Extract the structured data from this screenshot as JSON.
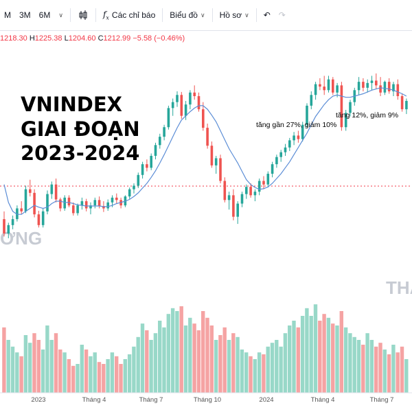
{
  "toolbar": {
    "items": [
      {
        "label": "M",
        "icon": ""
      },
      {
        "label": "3M",
        "icon": ""
      },
      {
        "label": "6M",
        "icon": ""
      }
    ],
    "candles_icon": "candlestick-icon",
    "indicators_label": "Các chỉ báo",
    "chart_label": "Biểu đồ",
    "profile_label": "Hồ sơ"
  },
  "ohlc": {
    "open": "1218.30",
    "high_label": "H",
    "high": "1225.38",
    "low_label": "L",
    "low": "1204.60",
    "close_label": "C",
    "close": "1212.99",
    "change": "−5.58 (−0.46%)"
  },
  "chart_data": {
    "type": "candlestick",
    "title_lines": [
      "VNINDEX",
      "GIAI ĐOẠN",
      "2023-2024"
    ],
    "annotations": [
      "tăng gần 27%, giảm 10%",
      "tăng 12%, giảm 9%"
    ],
    "watermarks": [
      "ƠNG",
      "THA"
    ],
    "x_ticks": [
      "2023",
      "Tháng 4",
      "Tháng 7",
      "Tháng 10",
      "2024",
      "Tháng 4",
      "Tháng 7"
    ],
    "colors": {
      "up": "#26a69a",
      "down": "#ef5350",
      "ma": "#5b8dd6",
      "vol_up": "#98d8c8",
      "vol_down": "#f5a3a3",
      "refline": "#f23645"
    },
    "ylim": [
      870,
      1330
    ],
    "candles": [
      [
        1032,
        1045,
        1003,
        1008
      ],
      [
        1008,
        1026,
        1000,
        1022
      ],
      [
        1022,
        1038,
        1015,
        1032
      ],
      [
        1032,
        1055,
        1028,
        1050
      ],
      [
        1050,
        1062,
        1040,
        1045
      ],
      [
        1045,
        1088,
        1042,
        1082
      ],
      [
        1082,
        1098,
        1070,
        1076
      ],
      [
        1076,
        1082,
        1035,
        1040
      ],
      [
        1040,
        1046,
        1018,
        1022
      ],
      [
        1022,
        1050,
        1018,
        1045
      ],
      [
        1045,
        1080,
        1040,
        1074
      ],
      [
        1074,
        1095,
        1066,
        1090
      ],
      [
        1090,
        1100,
        1060,
        1065
      ],
      [
        1065,
        1068,
        1045,
        1050
      ],
      [
        1050,
        1072,
        1046,
        1068
      ],
      [
        1068,
        1072,
        1052,
        1055
      ],
      [
        1055,
        1060,
        1038,
        1042
      ],
      [
        1042,
        1058,
        1038,
        1055
      ],
      [
        1055,
        1068,
        1048,
        1062
      ],
      [
        1062,
        1066,
        1045,
        1050
      ],
      [
        1050,
        1060,
        1040,
        1055
      ],
      [
        1055,
        1068,
        1050,
        1064
      ],
      [
        1064,
        1070,
        1050,
        1054
      ],
      [
        1054,
        1062,
        1044,
        1050
      ],
      [
        1050,
        1065,
        1046,
        1060
      ],
      [
        1060,
        1072,
        1052,
        1068
      ],
      [
        1068,
        1075,
        1058,
        1064
      ],
      [
        1064,
        1068,
        1050,
        1055
      ],
      [
        1055,
        1072,
        1052,
        1070
      ],
      [
        1070,
        1085,
        1066,
        1082
      ],
      [
        1082,
        1092,
        1075,
        1088
      ],
      [
        1088,
        1110,
        1084,
        1106
      ],
      [
        1106,
        1128,
        1100,
        1124
      ],
      [
        1124,
        1132,
        1112,
        1118
      ],
      [
        1118,
        1142,
        1114,
        1138
      ],
      [
        1138,
        1160,
        1132,
        1156
      ],
      [
        1156,
        1175,
        1150,
        1170
      ],
      [
        1170,
        1190,
        1164,
        1186
      ],
      [
        1186,
        1222,
        1182,
        1218
      ],
      [
        1218,
        1234,
        1205,
        1228
      ],
      [
        1228,
        1246,
        1220,
        1240
      ],
      [
        1240,
        1245,
        1200,
        1205
      ],
      [
        1205,
        1230,
        1198,
        1224
      ],
      [
        1224,
        1248,
        1216,
        1244
      ],
      [
        1244,
        1256,
        1232,
        1238
      ],
      [
        1238,
        1244,
        1212,
        1216
      ],
      [
        1216,
        1228,
        1180,
        1185
      ],
      [
        1185,
        1192,
        1150,
        1155
      ],
      [
        1155,
        1162,
        1118,
        1122
      ],
      [
        1122,
        1138,
        1108,
        1134
      ],
      [
        1134,
        1140,
        1092,
        1096
      ],
      [
        1096,
        1102,
        1060,
        1064
      ],
      [
        1064,
        1078,
        1048,
        1072
      ],
      [
        1072,
        1082,
        1030,
        1036
      ],
      [
        1036,
        1062,
        1024,
        1058
      ],
      [
        1058,
        1078,
        1052,
        1074
      ],
      [
        1074,
        1090,
        1066,
        1086
      ],
      [
        1086,
        1092,
        1068,
        1072
      ],
      [
        1072,
        1082,
        1062,
        1078
      ],
      [
        1078,
        1100,
        1072,
        1096
      ],
      [
        1096,
        1104,
        1082,
        1090
      ],
      [
        1090,
        1112,
        1085,
        1108
      ],
      [
        1108,
        1128,
        1102,
        1124
      ],
      [
        1124,
        1140,
        1118,
        1136
      ],
      [
        1136,
        1148,
        1128,
        1144
      ],
      [
        1144,
        1158,
        1138,
        1152
      ],
      [
        1152,
        1168,
        1146,
        1164
      ],
      [
        1164,
        1178,
        1156,
        1172
      ],
      [
        1172,
        1180,
        1160,
        1166
      ],
      [
        1166,
        1195,
        1162,
        1190
      ],
      [
        1190,
        1226,
        1186,
        1222
      ],
      [
        1222,
        1246,
        1216,
        1240
      ],
      [
        1240,
        1262,
        1232,
        1258
      ],
      [
        1258,
        1268,
        1248,
        1254
      ],
      [
        1254,
        1272,
        1240,
        1248
      ],
      [
        1248,
        1272,
        1244,
        1266
      ],
      [
        1266,
        1270,
        1240,
        1244
      ],
      [
        1244,
        1260,
        1236,
        1256
      ],
      [
        1256,
        1262,
        1180,
        1186
      ],
      [
        1186,
        1215,
        1180,
        1210
      ],
      [
        1210,
        1232,
        1204,
        1228
      ],
      [
        1228,
        1252,
        1222,
        1248
      ],
      [
        1248,
        1270,
        1240,
        1262
      ],
      [
        1262,
        1268,
        1246,
        1252
      ],
      [
        1252,
        1266,
        1244,
        1260
      ],
      [
        1260,
        1272,
        1248,
        1264
      ],
      [
        1264,
        1276,
        1250,
        1256
      ],
      [
        1256,
        1270,
        1238,
        1244
      ],
      [
        1244,
        1264,
        1240,
        1262
      ],
      [
        1262,
        1268,
        1242,
        1246
      ],
      [
        1246,
        1262,
        1238,
        1258
      ],
      [
        1258,
        1266,
        1232,
        1238
      ],
      [
        1238,
        1242,
        1212,
        1216
      ],
      [
        1216,
        1234,
        1208,
        1230
      ]
    ],
    "ma": [
      1090,
      1060,
      1045,
      1040,
      1040,
      1045,
      1050,
      1055,
      1052,
      1050,
      1052,
      1058,
      1062,
      1062,
      1060,
      1060,
      1058,
      1056,
      1055,
      1054,
      1054,
      1054,
      1054,
      1053,
      1053,
      1055,
      1058,
      1060,
      1062,
      1065,
      1070,
      1076,
      1084,
      1092,
      1102,
      1113,
      1126,
      1140,
      1155,
      1170,
      1185,
      1198,
      1205,
      1212,
      1218,
      1222,
      1222,
      1216,
      1206,
      1195,
      1180,
      1165,
      1150,
      1138,
      1126,
      1112,
      1098,
      1090,
      1085,
      1082,
      1083,
      1086,
      1092,
      1100,
      1108,
      1118,
      1128,
      1140,
      1152,
      1164,
      1176,
      1190,
      1204,
      1214,
      1224,
      1232,
      1238,
      1240,
      1238,
      1236,
      1236,
      1238,
      1240,
      1242,
      1245,
      1248,
      1250,
      1252,
      1251,
      1250,
      1248,
      1245,
      1242,
      1238
    ],
    "volume": [
      {
        "v": 0.68,
        "up": false
      },
      {
        "v": 0.55,
        "up": true
      },
      {
        "v": 0.48,
        "up": true
      },
      {
        "v": 0.42,
        "up": true
      },
      {
        "v": 0.38,
        "up": false
      },
      {
        "v": 0.6,
        "up": true
      },
      {
        "v": 0.52,
        "up": true
      },
      {
        "v": 0.62,
        "up": false
      },
      {
        "v": 0.55,
        "up": false
      },
      {
        "v": 0.45,
        "up": true
      },
      {
        "v": 0.7,
        "up": true
      },
      {
        "v": 0.55,
        "up": true
      },
      {
        "v": 0.62,
        "up": false
      },
      {
        "v": 0.45,
        "up": false
      },
      {
        "v": 0.42,
        "up": true
      },
      {
        "v": 0.35,
        "up": false
      },
      {
        "v": 0.28,
        "up": false
      },
      {
        "v": 0.3,
        "up": true
      },
      {
        "v": 0.5,
        "up": true
      },
      {
        "v": 0.45,
        "up": false
      },
      {
        "v": 0.38,
        "up": true
      },
      {
        "v": 0.42,
        "up": true
      },
      {
        "v": 0.32,
        "up": false
      },
      {
        "v": 0.3,
        "up": false
      },
      {
        "v": 0.35,
        "up": true
      },
      {
        "v": 0.42,
        "up": true
      },
      {
        "v": 0.38,
        "up": false
      },
      {
        "v": 0.3,
        "up": false
      },
      {
        "v": 0.35,
        "up": true
      },
      {
        "v": 0.4,
        "up": true
      },
      {
        "v": 0.48,
        "up": true
      },
      {
        "v": 0.58,
        "up": true
      },
      {
        "v": 0.72,
        "up": true
      },
      {
        "v": 0.65,
        "up": false
      },
      {
        "v": 0.55,
        "up": true
      },
      {
        "v": 0.62,
        "up": true
      },
      {
        "v": 0.75,
        "up": true
      },
      {
        "v": 0.68,
        "up": true
      },
      {
        "v": 0.82,
        "up": true
      },
      {
        "v": 0.88,
        "up": true
      },
      {
        "v": 0.85,
        "up": true
      },
      {
        "v": 0.9,
        "up": false
      },
      {
        "v": 0.7,
        "up": true
      },
      {
        "v": 0.78,
        "up": true
      },
      {
        "v": 0.72,
        "up": false
      },
      {
        "v": 0.65,
        "up": false
      },
      {
        "v": 0.85,
        "up": false
      },
      {
        "v": 0.78,
        "up": false
      },
      {
        "v": 0.7,
        "up": false
      },
      {
        "v": 0.55,
        "up": true
      },
      {
        "v": 0.6,
        "up": false
      },
      {
        "v": 0.68,
        "up": false
      },
      {
        "v": 0.55,
        "up": true
      },
      {
        "v": 0.62,
        "up": false
      },
      {
        "v": 0.58,
        "up": true
      },
      {
        "v": 0.45,
        "up": true
      },
      {
        "v": 0.42,
        "up": true
      },
      {
        "v": 0.38,
        "up": false
      },
      {
        "v": 0.35,
        "up": true
      },
      {
        "v": 0.42,
        "up": true
      },
      {
        "v": 0.4,
        "up": false
      },
      {
        "v": 0.48,
        "up": true
      },
      {
        "v": 0.52,
        "up": true
      },
      {
        "v": 0.55,
        "up": true
      },
      {
        "v": 0.48,
        "up": true
      },
      {
        "v": 0.62,
        "up": true
      },
      {
        "v": 0.7,
        "up": true
      },
      {
        "v": 0.75,
        "up": true
      },
      {
        "v": 0.68,
        "up": false
      },
      {
        "v": 0.8,
        "up": true
      },
      {
        "v": 0.88,
        "up": true
      },
      {
        "v": 0.8,
        "up": true
      },
      {
        "v": 0.92,
        "up": true
      },
      {
        "v": 0.75,
        "up": false
      },
      {
        "v": 0.82,
        "up": false
      },
      {
        "v": 0.78,
        "up": true
      },
      {
        "v": 0.72,
        "up": false
      },
      {
        "v": 0.7,
        "up": true
      },
      {
        "v": 0.85,
        "up": false
      },
      {
        "v": 0.68,
        "up": true
      },
      {
        "v": 0.62,
        "up": true
      },
      {
        "v": 0.58,
        "up": true
      },
      {
        "v": 0.55,
        "up": true
      },
      {
        "v": 0.5,
        "up": false
      },
      {
        "v": 0.62,
        "up": true
      },
      {
        "v": 0.55,
        "up": true
      },
      {
        "v": 0.48,
        "up": false
      },
      {
        "v": 0.52,
        "up": false
      },
      {
        "v": 0.45,
        "up": true
      },
      {
        "v": 0.4,
        "up": false
      },
      {
        "v": 0.5,
        "up": true
      },
      {
        "v": 0.42,
        "up": false
      },
      {
        "v": 0.48,
        "up": false
      },
      {
        "v": 0.35,
        "up": true
      }
    ]
  }
}
